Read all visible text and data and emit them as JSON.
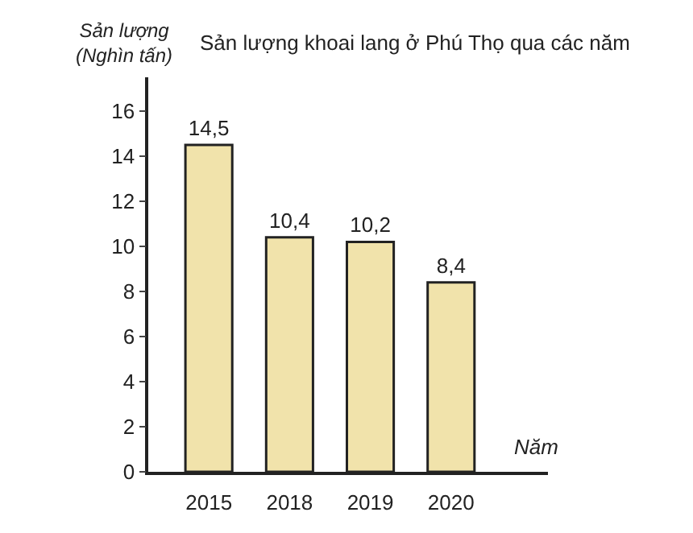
{
  "chart_data": {
    "type": "bar",
    "title": "Sản lượng khoai lang ở Phú Thọ qua các năm",
    "ylabel": "Sản lượng\n(Nghìn tấn)",
    "xlabel": "Năm",
    "categories": [
      "2015",
      "2018",
      "2019",
      "2020"
    ],
    "values": [
      14.5,
      10.4,
      10.2,
      8.4
    ],
    "value_labels": [
      "14,5",
      "10,4",
      "10,2",
      "8,4"
    ],
    "color": "#f1e3ab",
    "ylim": [
      0,
      17.5
    ],
    "yticks": [
      0,
      2,
      4,
      6,
      8,
      10,
      12,
      14,
      16
    ]
  }
}
